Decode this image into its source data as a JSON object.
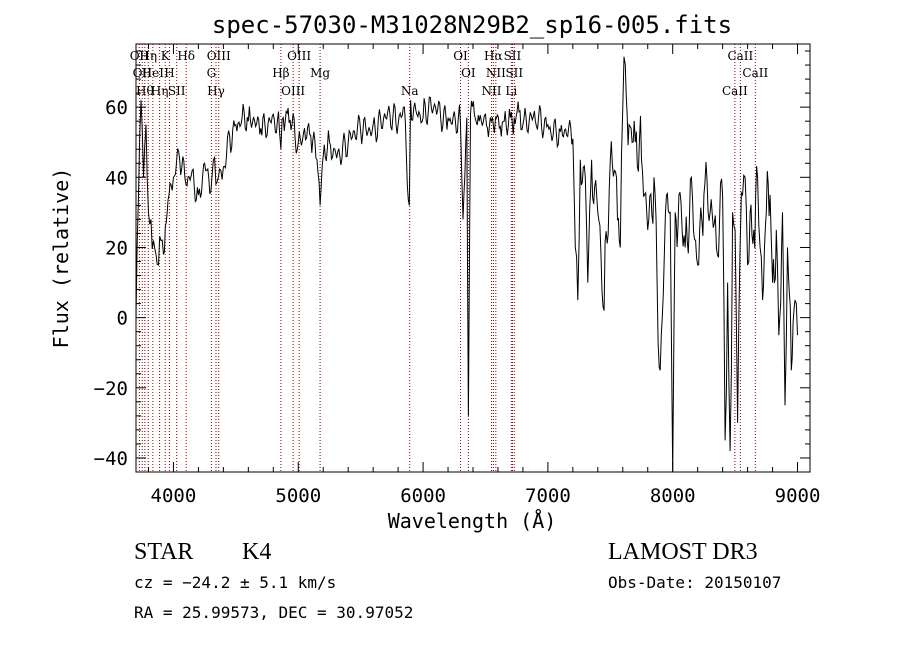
{
  "chart_data": {
    "type": "line",
    "title": "spec-57030-M31028N29B2_sp16-005.fits",
    "xlabel": "Wavelength (Å)",
    "ylabel": "Flux (relative)",
    "xlim": [
      3700,
      9100
    ],
    "ylim": [
      -44,
      78
    ],
    "xticks": [
      4000,
      5000,
      6000,
      7000,
      8000,
      9000
    ],
    "yticks": [
      -40,
      -20,
      0,
      20,
      40,
      60
    ],
    "series": [
      {
        "x": [
          3700,
          3720,
          3740,
          3760,
          3780,
          3800,
          3820,
          3840,
          3860,
          3880,
          3900,
          3920,
          3950,
          3980,
          4000,
          4050,
          4100,
          4150,
          4200,
          4250,
          4300,
          4320,
          4340,
          4360,
          4380,
          4400,
          4450,
          4500,
          4550,
          4600,
          4700,
          4800,
          4850,
          4861,
          4880,
          4950,
          5000,
          5050,
          5100,
          5150,
          5175,
          5200,
          5250,
          5300,
          5400,
          5500,
          5600,
          5700,
          5800,
          5850,
          5890,
          5900,
          5950,
          6000,
          6100,
          6200,
          6300,
          6320,
          6350,
          6363,
          6380,
          6450,
          6500,
          6563,
          6580,
          6650,
          6700,
          6716,
          6730,
          6800,
          6900,
          7000,
          7100,
          7200,
          7220,
          7240,
          7260,
          7300,
          7320,
          7350,
          7400,
          7450,
          7500,
          7550,
          7580,
          7600,
          7620,
          7650,
          7700,
          7750,
          7800,
          7850,
          7900,
          7950,
          7980,
          8000,
          8020,
          8050,
          8100,
          8150,
          8200,
          8250,
          8300,
          8350,
          8400,
          8420,
          8440,
          8460,
          8480,
          8500,
          8520,
          8540,
          8560,
          8580,
          8600,
          8620,
          8650,
          8680,
          8700,
          8720,
          8750,
          8780,
          8800,
          8830,
          8850,
          8880,
          8900,
          8920,
          8950,
          8980,
          9000
        ],
        "y": [
          0,
          35,
          62,
          40,
          55,
          30,
          28,
          22,
          18,
          15,
          22,
          18,
          30,
          38,
          40,
          45,
          38,
          42,
          35,
          44,
          36,
          45,
          38,
          40,
          42,
          43,
          52,
          55,
          57,
          56,
          54,
          58,
          53,
          48,
          57,
          55,
          50,
          54,
          52,
          45,
          32,
          46,
          50,
          47,
          50,
          53,
          55,
          57,
          55,
          60,
          32,
          62,
          58,
          57,
          60,
          57,
          55,
          28,
          57,
          -28,
          58,
          56,
          58,
          55,
          57,
          56,
          57,
          55,
          57,
          55,
          56,
          55,
          53,
          51,
          20,
          5,
          45,
          40,
          10,
          45,
          30,
          2,
          45,
          40,
          20,
          60,
          72,
          55,
          50,
          45,
          25,
          40,
          -15,
          35,
          30,
          -44,
          30,
          35,
          20,
          40,
          15,
          35,
          30,
          20,
          35,
          -35,
          10,
          -38,
          30,
          25,
          -30,
          20,
          35,
          40,
          15,
          30,
          25,
          40,
          20,
          5,
          30,
          35,
          10,
          25,
          -5,
          30,
          -25,
          20,
          -15,
          5,
          -5
        ]
      }
    ],
    "lines": [
      {
        "wl": 3727,
        "label": "OII"
      },
      {
        "wl": 3750,
        "label": "OII"
      },
      {
        "wl": 3771,
        "label": "Hθ"
      },
      {
        "wl": 3798,
        "label": "Hη"
      },
      {
        "wl": 3835,
        "label": "HeI"
      },
      {
        "wl": 3889,
        "label": "Hη"
      },
      {
        "wl": 3934,
        "label": "K"
      },
      {
        "wl": 3968,
        "label": "H"
      },
      {
        "wl": 4026,
        "label": "SII"
      },
      {
        "wl": 4102,
        "label": "Hδ"
      },
      {
        "wl": 4304,
        "label": "G"
      },
      {
        "wl": 4341,
        "label": "Hγ"
      },
      {
        "wl": 4363,
        "label": "OIII"
      },
      {
        "wl": 4861,
        "label": "Hβ"
      },
      {
        "wl": 4959,
        "label": "OIII"
      },
      {
        "wl": 5007,
        "label": "OIII"
      },
      {
        "wl": 5175,
        "label": "Mg"
      },
      {
        "wl": 5893,
        "label": "Na"
      },
      {
        "wl": 6300,
        "label": "OI"
      },
      {
        "wl": 6363,
        "label": "OI"
      },
      {
        "wl": 6548,
        "label": "NII"
      },
      {
        "wl": 6563,
        "label": "Hα"
      },
      {
        "wl": 6583,
        "label": "NII"
      },
      {
        "wl": 6707,
        "label": "Li"
      },
      {
        "wl": 6716,
        "label": "SII"
      },
      {
        "wl": 6731,
        "label": "SII"
      },
      {
        "wl": 8498,
        "label": "CaII"
      },
      {
        "wl": 8542,
        "label": "CaII"
      },
      {
        "wl": 8662,
        "label": "CaII"
      }
    ],
    "line_color": "#8b0000",
    "grid": false,
    "legend": "none"
  },
  "info": {
    "class": "STAR",
    "subclass": "K4",
    "survey": "LAMOST DR3",
    "cz": "cz = −24.2 ± 5.1 km/s",
    "obs_date": "Obs-Date: 20150107",
    "radec": "RA =  25.99573, DEC =  30.97052"
  }
}
